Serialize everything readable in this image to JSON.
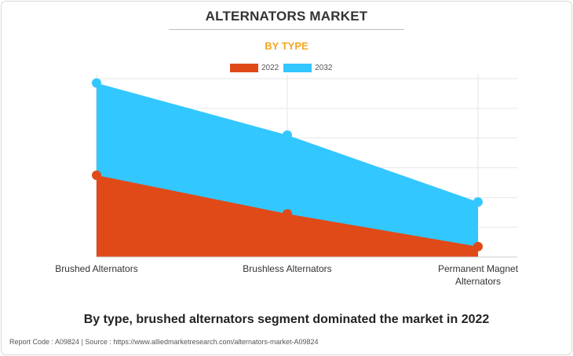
{
  "header": {
    "title": "ALTERNATORS MARKET",
    "subtitle": "BY TYPE"
  },
  "legend": [
    {
      "label": "2022",
      "color": "#e04a18"
    },
    {
      "label": "2032",
      "color": "#33c7ff"
    }
  ],
  "chart_data": {
    "type": "area",
    "title": "ALTERNATORS MARKET",
    "subtitle": "BY TYPE",
    "categories": [
      "Brushed Alternators",
      "Brushless Alternators",
      "Permanent Magnet Alternators"
    ],
    "category_lines": [
      [
        "Brushed Alternators"
      ],
      [
        "Brushless Alternators"
      ],
      [
        "Permanent Magnet",
        "Alternators"
      ]
    ],
    "series": [
      {
        "name": "2022",
        "values": [
          2.75,
          1.45,
          0.35
        ],
        "color": "#e04a18"
      },
      {
        "name": "2032",
        "values": [
          5.85,
          4.1,
          1.85
        ],
        "color": "#33c7ff"
      }
    ],
    "ylim": [
      0,
      6
    ],
    "y_tick_labels_shown": false,
    "grid": true,
    "legend_position": "top-center"
  },
  "caption": "By type, brushed alternators segment dominated the market in 2022",
  "footer": "Report Code : A09824  |  Source : https://www.alliedmarketresearch.com/alternators-market-A09824"
}
